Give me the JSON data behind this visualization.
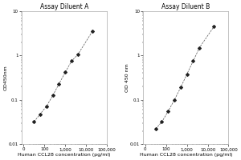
{
  "title_A": "Assay Diluent A",
  "title_B": "Assay Diluent B",
  "xlabel": "Human CCL28 concentration (pg/ml)",
  "ylabel_A": "OD450nm",
  "ylabel_B": "OD 450 nm",
  "background_color": "#ffffff",
  "plot_bg": "#ffffff",
  "line_color": "#555555",
  "marker_color": "#222222",
  "curve_A_x": [
    31.25,
    62.5,
    125,
    250,
    500,
    1000,
    2000,
    4000,
    20000
  ],
  "curve_A_y": [
    0.032,
    0.048,
    0.072,
    0.125,
    0.23,
    0.42,
    0.75,
    1.05,
    3.5
  ],
  "xlim_A": [
    8,
    100000
  ],
  "ylim_A": [
    0.01,
    10
  ],
  "curve_B_x": [
    31.25,
    62.5,
    125,
    250,
    500,
    1000,
    2000,
    4000,
    20000
  ],
  "curve_B_y": [
    0.022,
    0.032,
    0.055,
    0.1,
    0.19,
    0.38,
    0.75,
    1.5,
    4.5
  ],
  "xlim_B": [
    8,
    100000
  ],
  "ylim_B": [
    0.01,
    10
  ],
  "title_fontsize": 5.5,
  "label_fontsize": 4.5,
  "tick_fontsize": 4.0
}
